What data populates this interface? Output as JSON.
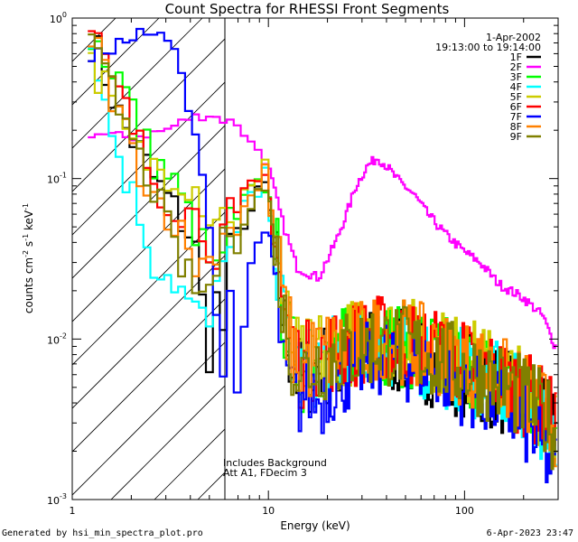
{
  "chart_data": {
    "type": "line",
    "title": "Count Spectra for RHESSI Front Segments",
    "xlabel": "Energy (keV)",
    "ylabel_parts": [
      "counts cm",
      "-2",
      " s",
      "-1",
      " keV",
      "-1"
    ],
    "xscale": "log",
    "yscale": "log",
    "xlim": [
      1,
      300
    ],
    "ylim": [
      0.001,
      1
    ],
    "x_tick_labels": [
      {
        "value": 1,
        "label": "1"
      },
      {
        "value": 10,
        "label": "10"
      },
      {
        "value": 100,
        "label": "100"
      }
    ],
    "y_tick_labels": [
      {
        "value": 1,
        "base": "10",
        "exp": "0"
      },
      {
        "value": 0.1,
        "base": "10",
        "exp": "-1"
      },
      {
        "value": 0.01,
        "base": "10",
        "exp": "-2"
      },
      {
        "value": 0.001,
        "base": "10",
        "exp": "-3"
      }
    ],
    "hatched_region_keV": [
      1,
      6
    ],
    "legend_header": [
      "1-Apr-2002",
      "19:13:00 to 19:14:00"
    ],
    "annotations": [
      "Includes Background",
      "Att A1, FDecim 3"
    ],
    "series": [
      {
        "name": "1F",
        "color": "#000000",
        "offset": 1.0,
        "low_profile": [
          [
            1.3,
            0.72
          ],
          [
            1.5,
            0.4
          ],
          [
            1.8,
            0.22
          ],
          [
            2.2,
            0.15
          ],
          [
            2.6,
            0.1
          ],
          [
            3.2,
            0.07
          ],
          [
            4.2,
            0.04
          ],
          [
            5.0,
            0.008
          ],
          [
            5.5,
            0.02
          ],
          [
            6.0,
            0.01
          ]
        ]
      },
      {
        "name": "2F",
        "color": "#ff00ff",
        "offset": 1.0,
        "points": [
          [
            1.3,
            0.19
          ],
          [
            2.0,
            0.18
          ],
          [
            3.0,
            0.2
          ],
          [
            4.0,
            0.24
          ],
          [
            5.0,
            0.25
          ],
          [
            6.0,
            0.23
          ],
          [
            7.0,
            0.22
          ],
          [
            8.0,
            0.17
          ],
          [
            9.0,
            0.15
          ],
          [
            10,
            0.12
          ],
          [
            11,
            0.075
          ],
          [
            12,
            0.05
          ],
          [
            14,
            0.028
          ],
          [
            18,
            0.024
          ],
          [
            22,
            0.04
          ],
          [
            25,
            0.06
          ],
          [
            28,
            0.09
          ],
          [
            32,
            0.12
          ],
          [
            36,
            0.135
          ],
          [
            40,
            0.12
          ],
          [
            45,
            0.1
          ],
          [
            55,
            0.08
          ],
          [
            65,
            0.06
          ],
          [
            80,
            0.045
          ],
          [
            100,
            0.035
          ],
          [
            120,
            0.03
          ],
          [
            150,
            0.022
          ],
          [
            200,
            0.018
          ],
          [
            250,
            0.014
          ],
          [
            290,
            0.009
          ]
        ]
      },
      {
        "name": "3F",
        "color": "#00ff00",
        "offset": 1.15,
        "low_profile": [
          [
            1.3,
            0.75
          ],
          [
            1.5,
            0.55
          ],
          [
            1.8,
            0.4
          ],
          [
            2.2,
            0.2
          ],
          [
            2.6,
            0.13
          ],
          [
            3.2,
            0.1
          ],
          [
            4.2,
            0.05
          ],
          [
            5.0,
            0.03
          ],
          [
            5.5,
            0.025
          ],
          [
            6.0,
            0.04
          ]
        ]
      },
      {
        "name": "4F",
        "color": "#00ffff",
        "offset": 1.05,
        "low_profile": [
          [
            1.3,
            0.7
          ],
          [
            1.5,
            0.25
          ],
          [
            1.8,
            0.12
          ],
          [
            2.2,
            0.06
          ],
          [
            2.6,
            0.03
          ],
          [
            3.2,
            0.025
          ],
          [
            4.2,
            0.015
          ],
          [
            5.0,
            0.012
          ],
          [
            5.5,
            0.02
          ],
          [
            6.0,
            0.03
          ]
        ]
      },
      {
        "name": "5F",
        "color": "#cccc00",
        "offset": 1.25,
        "low_profile": [
          [
            1.3,
            0.5
          ],
          [
            1.5,
            0.35
          ],
          [
            1.8,
            0.2
          ],
          [
            2.2,
            0.14
          ],
          [
            2.6,
            0.12
          ],
          [
            3.2,
            0.11
          ],
          [
            4.2,
            0.09
          ],
          [
            5.0,
            0.06
          ],
          [
            5.5,
            0.06
          ],
          [
            6.0,
            0.06
          ]
        ]
      },
      {
        "name": "6F",
        "color": "#ff0000",
        "offset": 1.2,
        "low_profile": [
          [
            1.3,
            0.8
          ],
          [
            1.5,
            0.45
          ],
          [
            1.8,
            0.3
          ],
          [
            2.2,
            0.16
          ],
          [
            2.6,
            0.1
          ],
          [
            3.2,
            0.07
          ],
          [
            4.2,
            0.06
          ],
          [
            5.0,
            0.04
          ],
          [
            5.5,
            0.035
          ],
          [
            6.0,
            0.05
          ]
        ]
      },
      {
        "name": "7F",
        "color": "#0000ff",
        "offset": 1.05,
        "points": [
          [
            1.3,
            0.55
          ],
          [
            1.5,
            0.65
          ],
          [
            1.8,
            0.7
          ],
          [
            2.2,
            0.78
          ],
          [
            2.6,
            0.75
          ],
          [
            3.0,
            0.8
          ],
          [
            3.4,
            0.55
          ],
          [
            3.8,
            0.35
          ],
          [
            4.2,
            0.2
          ],
          [
            4.6,
            0.12
          ],
          [
            5.0,
            0.05
          ],
          [
            5.5,
            0.012
          ],
          [
            6.0,
            0.0045
          ],
          [
            6.5,
            0.03
          ],
          [
            7.0,
            0.004
          ],
          [
            8.0,
            0.025
          ],
          [
            9.0,
            0.04
          ],
          [
            10,
            0.05
          ],
          [
            11,
            0.02
          ],
          [
            12,
            0.006
          ],
          [
            14,
            0.004
          ],
          [
            16,
            0.005
          ],
          [
            18,
            0.004
          ],
          [
            20,
            0.005
          ],
          [
            25,
            0.006
          ],
          [
            30,
            0.007
          ],
          [
            40,
            0.008
          ],
          [
            50,
            0.007
          ],
          [
            60,
            0.007
          ],
          [
            80,
            0.006
          ],
          [
            100,
            0.005
          ],
          [
            150,
            0.004
          ],
          [
            200,
            0.003
          ],
          [
            250,
            0.002
          ],
          [
            290,
            0.0015
          ]
        ]
      },
      {
        "name": "8F",
        "color": "#ff8000",
        "offset": 1.2,
        "low_profile": [
          [
            1.3,
            0.78
          ],
          [
            1.5,
            0.42
          ],
          [
            1.8,
            0.22
          ],
          [
            2.2,
            0.12
          ],
          [
            2.6,
            0.08
          ],
          [
            3.2,
            0.06
          ],
          [
            4.2,
            0.03
          ],
          [
            5.0,
            0.03
          ],
          [
            5.5,
            0.04
          ],
          [
            6.0,
            0.045
          ]
        ]
      },
      {
        "name": "9F",
        "color": "#808000",
        "offset": 1.1,
        "low_profile": [
          [
            1.3,
            0.6
          ],
          [
            1.5,
            0.4
          ],
          [
            1.8,
            0.25
          ],
          [
            2.2,
            0.13
          ],
          [
            2.6,
            0.09
          ],
          [
            3.2,
            0.04
          ],
          [
            4.2,
            0.02
          ],
          [
            5.0,
            0.02
          ],
          [
            5.5,
            0.03
          ],
          [
            6.0,
            0.04
          ]
        ]
      }
    ],
    "common_high_profile": [
      [
        6.5,
        0.05
      ],
      [
        7.0,
        0.04
      ],
      [
        7.5,
        0.06
      ],
      [
        8.0,
        0.07
      ],
      [
        8.5,
        0.05
      ],
      [
        9.0,
        0.08
      ],
      [
        9.5,
        0.09
      ],
      [
        10,
        0.07
      ],
      [
        10.5,
        0.04
      ],
      [
        11,
        0.03
      ],
      [
        11.5,
        0.02
      ],
      [
        12,
        0.012
      ],
      [
        13,
        0.008
      ],
      [
        14,
        0.006
      ],
      [
        15,
        0.0055
      ],
      [
        17,
        0.0065
      ],
      [
        20,
        0.007
      ],
      [
        25,
        0.0075
      ],
      [
        30,
        0.008
      ],
      [
        35,
        0.0085
      ],
      [
        40,
        0.0085
      ],
      [
        50,
        0.008
      ],
      [
        60,
        0.0075
      ],
      [
        70,
        0.007
      ],
      [
        80,
        0.0065
      ],
      [
        100,
        0.006
      ],
      [
        120,
        0.0055
      ],
      [
        150,
        0.0048
      ],
      [
        180,
        0.0042
      ],
      [
        220,
        0.0035
      ],
      [
        260,
        0.003
      ],
      [
        290,
        0.0025
      ]
    ]
  },
  "footer": {
    "left": "Generated by hsi_min_spectra_plot.pro",
    "right": "6-Apr-2023 23:47"
  }
}
